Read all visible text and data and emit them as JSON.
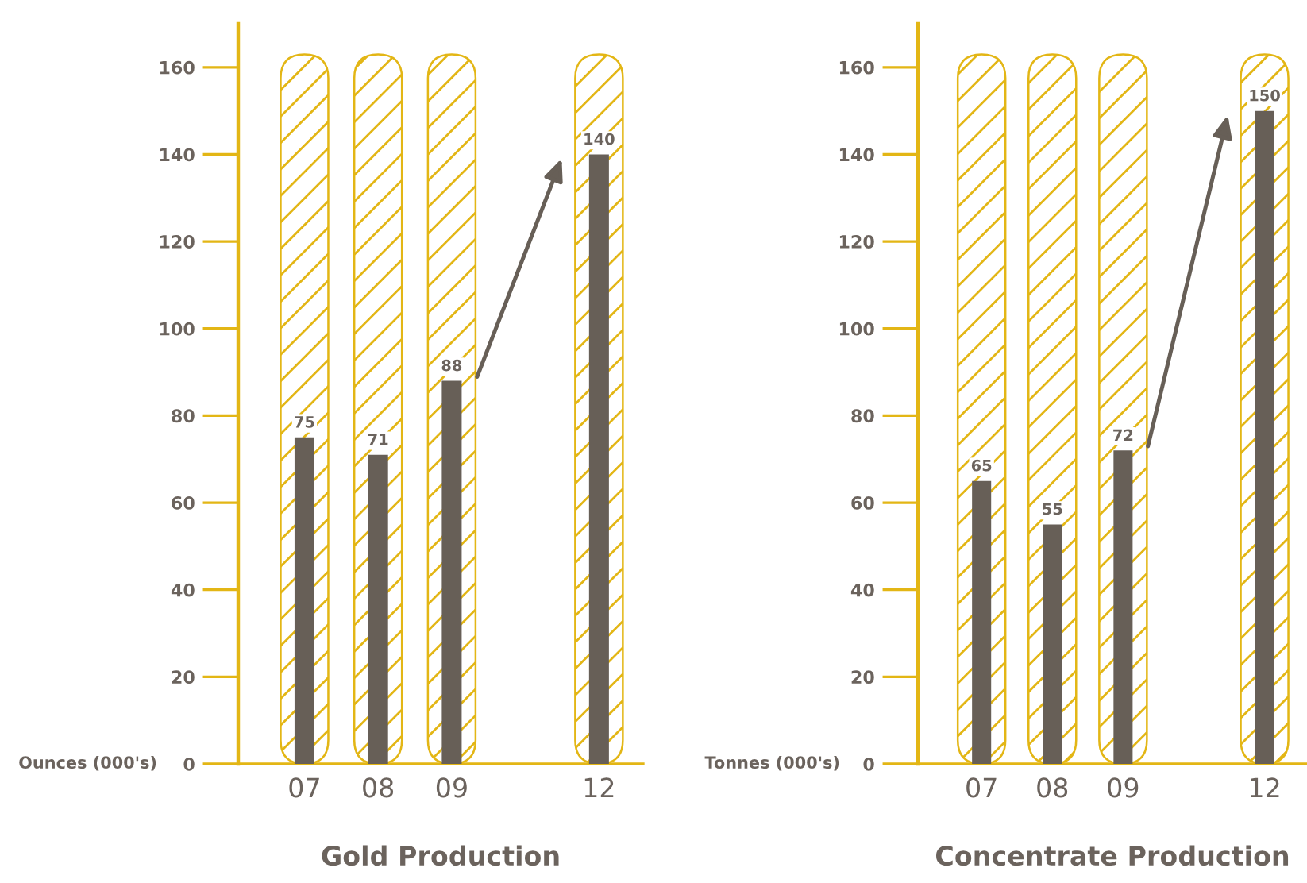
{
  "chart_data": [
    {
      "type": "bar",
      "title": "Gold Production",
      "ylabel": "Ounces (000's)",
      "categories": [
        "07",
        "08",
        "09",
        null,
        "12"
      ],
      "series": [
        {
          "color": "#e3b615",
          "values": [
            163,
            163,
            163,
            null,
            163
          ]
        },
        {
          "color": "#675f57",
          "values": [
            75,
            71,
            88,
            null,
            140
          ],
          "value_labels": [
            "75",
            "71",
            "88",
            null,
            "140"
          ]
        }
      ],
      "ylim": [
        0,
        170
      ],
      "yticks": [
        0,
        20,
        40,
        60,
        80,
        100,
        120,
        140,
        160
      ]
    },
    {
      "type": "bar",
      "title": "Concentrate Production",
      "ylabel": "Tonnes (000's)",
      "categories": [
        "07",
        "08",
        "09",
        null,
        "12"
      ],
      "series": [
        {
          "color": "#e3b615",
          "values": [
            163,
            163,
            163,
            null,
            163
          ]
        },
        {
          "color": "#675f57",
          "values": [
            65,
            55,
            72,
            null,
            150
          ],
          "value_labels": [
            "65",
            "55",
            "72",
            null,
            "150"
          ]
        }
      ],
      "ylim": [
        0,
        170
      ],
      "yticks": [
        0,
        20,
        40,
        60,
        80,
        100,
        120,
        140,
        160
      ]
    }
  ]
}
